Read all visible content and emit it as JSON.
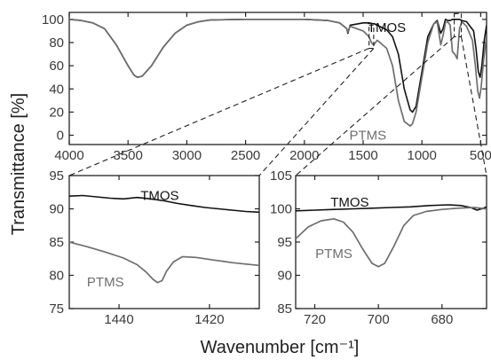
{
  "figure": {
    "ylabel": "Transmittance [%]",
    "xlabel": "Wavenumber [cm⁻¹]"
  },
  "colors": {
    "TMOS": "#111111",
    "PTMS": "#6e6e6e",
    "axis": "#222222"
  },
  "chart_data": [
    {
      "type": "line",
      "panel": "full-spectrum",
      "xlim": [
        4000,
        450
      ],
      "ylim": [
        -8,
        106
      ],
      "x_reversed": true,
      "x_ticks": [
        4000,
        3500,
        3000,
        2500,
        2000,
        1500,
        1000,
        500
      ],
      "y_ticks": [
        0,
        20,
        40,
        60,
        80,
        100
      ],
      "x_tick_labels": [
        "4000",
        "3500",
        "3000",
        "2500",
        "2000",
        "1500",
        "1000",
        "500"
      ],
      "y_tick_labels": [
        "0",
        "20",
        "40",
        "60",
        "80",
        "100"
      ],
      "annotations": [
        {
          "text": "TMOS",
          "series": "TMOS",
          "x": 1300,
          "y": 93
        },
        {
          "text": "PTMS",
          "series": "PTMS",
          "x": 1460,
          "y": 0
        }
      ],
      "zoom_boxes": [
        {
          "x": [
            1450,
            1410
          ],
          "y": [
            75,
            95
          ]
        },
        {
          "x": [
            725,
            665
          ],
          "y": [
            85,
            105
          ]
        }
      ],
      "series": [
        {
          "name": "TMOS",
          "points": [
            [
              4000,
              100
            ],
            [
              3900,
              99
            ],
            [
              3800,
              97
            ],
            [
              3700,
              92
            ],
            [
              3600,
              78
            ],
            [
              3500,
              60
            ],
            [
              3450,
              52
            ],
            [
              3420,
              50
            ],
            [
              3380,
              51
            ],
            [
              3300,
              60
            ],
            [
              3200,
              76
            ],
            [
              3100,
              88
            ],
            [
              3000,
              95
            ],
            [
              2900,
              98
            ],
            [
              2800,
              99.5
            ],
            [
              2500,
              100
            ],
            [
              2000,
              100
            ],
            [
              1800,
              99
            ],
            [
              1700,
              97
            ],
            [
              1640,
              92
            ],
            [
              1630,
              88
            ],
            [
              1610,
              95
            ],
            [
              1500,
              97
            ],
            [
              1450,
              97
            ],
            [
              1400,
              96
            ],
            [
              1300,
              91
            ],
            [
              1250,
              85
            ],
            [
              1200,
              70
            ],
            [
              1150,
              40
            ],
            [
              1100,
              22
            ],
            [
              1080,
              20
            ],
            [
              1050,
              25
            ],
            [
              1000,
              55
            ],
            [
              950,
              85
            ],
            [
              900,
              96
            ],
            [
              870,
              99
            ],
            [
              840,
              88
            ],
            [
              820,
              92
            ],
            [
              800,
              100
            ],
            [
              780,
              99
            ],
            [
              760,
              99
            ],
            [
              740,
              100
            ],
            [
              720,
              100
            ],
            [
              700,
              100
            ],
            [
              680,
              100
            ],
            [
              660,
              99
            ],
            [
              620,
              98
            ],
            [
              560,
              90
            ],
            [
              540,
              75
            ],
            [
              520,
              55
            ],
            [
              505,
              50
            ],
            [
              490,
              60
            ],
            [
              470,
              82
            ],
            [
              450,
              95
            ]
          ]
        },
        {
          "name": "PTMS",
          "points": [
            [
              4000,
              100
            ],
            [
              3900,
              99
            ],
            [
              3800,
              97
            ],
            [
              3700,
              92
            ],
            [
              3600,
              78
            ],
            [
              3500,
              60
            ],
            [
              3450,
              52
            ],
            [
              3420,
              50
            ],
            [
              3380,
              51
            ],
            [
              3300,
              60
            ],
            [
              3200,
              76
            ],
            [
              3100,
              88
            ],
            [
              3000,
              95
            ],
            [
              2900,
              98
            ],
            [
              2800,
              99.5
            ],
            [
              2500,
              100
            ],
            [
              2000,
              100
            ],
            [
              1800,
              99
            ],
            [
              1700,
              97
            ],
            [
              1640,
              92
            ],
            [
              1630,
              89
            ],
            [
              1610,
              94
            ],
            [
              1500,
              90
            ],
            [
              1450,
              85
            ],
            [
              1430,
              80
            ],
            [
              1410,
              78
            ],
            [
              1380,
              82
            ],
            [
              1300,
              75
            ],
            [
              1250,
              60
            ],
            [
              1200,
              30
            ],
            [
              1150,
              12
            ],
            [
              1100,
              8
            ],
            [
              1080,
              10
            ],
            [
              1050,
              20
            ],
            [
              1000,
              50
            ],
            [
              950,
              80
            ],
            [
              900,
              96
            ],
            [
              870,
              98
            ],
            [
              840,
              78
            ],
            [
              820,
              86
            ],
            [
              800,
              97
            ],
            [
              780,
              98
            ],
            [
              760,
              95
            ],
            [
              740,
              72
            ],
            [
              720,
              70
            ],
            [
              700,
              66
            ],
            [
              680,
              92
            ],
            [
              660,
              98
            ],
            [
              620,
              94
            ],
            [
              570,
              82
            ],
            [
              545,
              60
            ],
            [
              525,
              38
            ],
            [
              510,
              32
            ],
            [
              495,
              42
            ],
            [
              475,
              65
            ],
            [
              450,
              85
            ]
          ]
        }
      ]
    },
    {
      "type": "line",
      "panel": "zoom-left",
      "xlim": [
        1451,
        1409
      ],
      "ylim": [
        75,
        95
      ],
      "x_reversed": true,
      "x_ticks": [
        1440,
        1420
      ],
      "y_ticks": [
        75,
        80,
        85,
        90,
        95
      ],
      "x_tick_labels": [
        "1440",
        "1420"
      ],
      "y_tick_labels": [
        "75",
        "80",
        "85",
        "90",
        "95"
      ],
      "annotations": [
        {
          "text": "TMOS",
          "series": "TMOS",
          "x": 1431,
          "y": 92
        },
        {
          "text": "PTMS",
          "series": "PTMS",
          "x": 1443,
          "y": 79
        }
      ],
      "series": [
        {
          "name": "TMOS",
          "points": [
            [
              1451,
              91.9
            ],
            [
              1448,
              92
            ],
            [
              1445,
              91.8
            ],
            [
              1442,
              91.6
            ],
            [
              1439,
              91.5
            ],
            [
              1436,
              91.7
            ],
            [
              1433,
              91.5
            ],
            [
              1430,
              91.2
            ],
            [
              1427,
              90.8
            ],
            [
              1424,
              90.5
            ],
            [
              1421,
              90.2
            ],
            [
              1418,
              90.0
            ],
            [
              1415,
              89.8
            ],
            [
              1412,
              89.6
            ],
            [
              1409,
              89.5
            ]
          ]
        },
        {
          "name": "PTMS",
          "points": [
            [
              1451,
              85
            ],
            [
              1447,
              84.3
            ],
            [
              1443,
              83.5
            ],
            [
              1439,
              82.6
            ],
            [
              1436,
              81.6
            ],
            [
              1434,
              80.5
            ],
            [
              1432.5,
              79.4
            ],
            [
              1431.5,
              78.9
            ],
            [
              1430.5,
              79.2
            ],
            [
              1429.5,
              80.6
            ],
            [
              1428,
              82.0
            ],
            [
              1426,
              82.8
            ],
            [
              1423,
              82.7
            ],
            [
              1419,
              82.3
            ],
            [
              1415,
              81.9
            ],
            [
              1412,
              81.7
            ],
            [
              1409,
              81.5
            ]
          ]
        }
      ]
    },
    {
      "type": "line",
      "panel": "zoom-right",
      "xlim": [
        726,
        666
      ],
      "ylim": [
        85,
        105
      ],
      "x_reversed": true,
      "x_ticks": [
        720,
        700,
        680
      ],
      "y_ticks": [
        85,
        90,
        95,
        100,
        105
      ],
      "x_tick_labels": [
        "720",
        "700",
        "680"
      ],
      "y_tick_labels": [
        "85",
        "90",
        "95",
        "100",
        "105"
      ],
      "annotations": [
        {
          "text": "TMOS",
          "series": "TMOS",
          "x": 709,
          "y": 101
        },
        {
          "text": "PTMS",
          "series": "PTMS",
          "x": 714,
          "y": 93.3
        }
      ],
      "series": [
        {
          "name": "TMOS",
          "points": [
            [
              726,
              99.7
            ],
            [
              720,
              99.8
            ],
            [
              714,
              99.9
            ],
            [
              708,
              100
            ],
            [
              702,
              100.1
            ],
            [
              696,
              100.2
            ],
            [
              690,
              100.3
            ],
            [
              684,
              100.5
            ],
            [
              678,
              100.6
            ],
            [
              674,
              100.5
            ],
            [
              671,
              100.2
            ],
            [
              669,
              99.8
            ],
            [
              667,
              100.1
            ],
            [
              666,
              100.3
            ]
          ]
        },
        {
          "name": "PTMS",
          "points": [
            [
              726,
              95.5
            ],
            [
              722,
              97.3
            ],
            [
              718,
              98.2
            ],
            [
              714,
              98.5
            ],
            [
              711,
              98.0
            ],
            [
              708,
              96.5
            ],
            [
              705,
              94.0
            ],
            [
              702,
              91.8
            ],
            [
              700,
              91.3
            ],
            [
              698,
              91.8
            ],
            [
              695,
              94.5
            ],
            [
              692,
              97.5
            ],
            [
              689,
              99.0
            ],
            [
              685,
              99.6
            ],
            [
              680,
              99.9
            ],
            [
              675,
              100.1
            ],
            [
              670,
              100.2
            ],
            [
              666,
              100.0
            ]
          ]
        }
      ]
    }
  ]
}
